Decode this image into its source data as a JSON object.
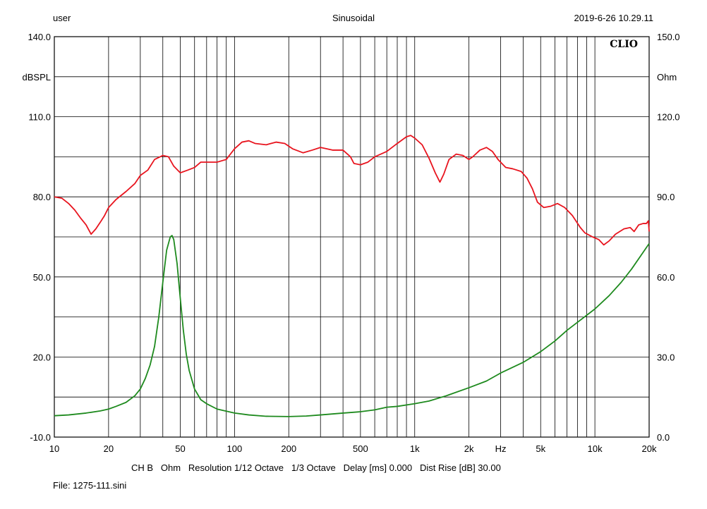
{
  "header": {
    "left": "user",
    "center": "Sinusoidal",
    "right": "2019-6-26 10.29.11"
  },
  "footer": {
    "settings": "CH B   Ohm   Resolution 1/12 Octave   1/3 Octave   Delay [ms] 0.000   Dist Rise [dB] 30.00",
    "file": "File: 1275-111.sini"
  },
  "chart_data": {
    "type": "line",
    "title": "",
    "logo": "CLIO",
    "xscale": "log",
    "xlim": [
      10,
      20000
    ],
    "x_ticks": [
      10,
      20,
      50,
      100,
      200,
      500,
      1000,
      2000,
      5000,
      10000,
      20000
    ],
    "x_tick_labels": [
      "10",
      "20",
      "50",
      "100",
      "200",
      "500",
      "1k",
      "2k",
      "5k",
      "10k",
      "20k"
    ],
    "x_unit_label": "Hz",
    "x_unit_position": 3000,
    "left_axis": {
      "label": "dBSPL",
      "lim": [
        -10,
        140
      ],
      "ticks": [
        -10,
        20,
        50,
        80,
        110,
        140
      ],
      "tick_labels": [
        "-10.0",
        "20.0",
        "50.0",
        "80.0",
        "110.0",
        "140.0"
      ]
    },
    "right_axis": {
      "label": "Ohm",
      "lim": [
        0,
        150
      ],
      "ticks": [
        0,
        30,
        60,
        90,
        120,
        150
      ],
      "tick_labels": [
        "0.0",
        "30.0",
        "60.0",
        "90.0",
        "120.0",
        "150.0"
      ]
    },
    "grid": true,
    "colors": {
      "spl": "#e8141e",
      "impedance": "#1e8a1e",
      "grid": "#000000"
    },
    "series": [
      {
        "axis": "left",
        "points": [
          [
            10,
            80
          ],
          [
            11,
            79.5
          ],
          [
            12,
            77.5
          ],
          [
            13,
            75
          ],
          [
            14,
            72
          ],
          [
            15,
            69.5
          ],
          [
            16,
            66
          ],
          [
            17,
            68
          ],
          [
            18,
            70.5
          ],
          [
            19,
            73
          ],
          [
            20,
            76
          ],
          [
            22,
            79
          ],
          [
            25,
            82
          ],
          [
            28,
            85
          ],
          [
            30,
            88
          ],
          [
            33,
            90
          ],
          [
            36,
            94
          ],
          [
            40,
            95.5
          ],
          [
            43,
            95
          ],
          [
            46,
            91.5
          ],
          [
            50,
            89
          ],
          [
            55,
            90
          ],
          [
            60,
            91
          ],
          [
            65,
            93
          ],
          [
            70,
            93
          ],
          [
            80,
            93
          ],
          [
            90,
            94
          ],
          [
            100,
            98
          ],
          [
            110,
            100.5
          ],
          [
            120,
            101
          ],
          [
            130,
            100
          ],
          [
            150,
            99.5
          ],
          [
            170,
            100.5
          ],
          [
            190,
            100
          ],
          [
            210,
            98
          ],
          [
            240,
            96.5
          ],
          [
            270,
            97.5
          ],
          [
            300,
            98.5
          ],
          [
            350,
            97.5
          ],
          [
            400,
            97.5
          ],
          [
            440,
            95
          ],
          [
            460,
            92.5
          ],
          [
            500,
            92
          ],
          [
            550,
            93
          ],
          [
            600,
            95
          ],
          [
            700,
            97
          ],
          [
            800,
            100
          ],
          [
            900,
            102.5
          ],
          [
            950,
            103
          ],
          [
            1000,
            102
          ],
          [
            1100,
            99.5
          ],
          [
            1200,
            94.5
          ],
          [
            1300,
            89
          ],
          [
            1380,
            85.5
          ],
          [
            1450,
            88.5
          ],
          [
            1550,
            94
          ],
          [
            1700,
            96
          ],
          [
            1850,
            95.5
          ],
          [
            2000,
            94
          ],
          [
            2100,
            95
          ],
          [
            2300,
            97.5
          ],
          [
            2500,
            98.5
          ],
          [
            2700,
            97
          ],
          [
            2900,
            94
          ],
          [
            3200,
            91
          ],
          [
            3500,
            90.5
          ],
          [
            3900,
            89.5
          ],
          [
            4200,
            87
          ],
          [
            4500,
            83
          ],
          [
            4800,
            78
          ],
          [
            5200,
            76
          ],
          [
            5700,
            76.5
          ],
          [
            6200,
            77.5
          ],
          [
            6800,
            76
          ],
          [
            7500,
            73
          ],
          [
            8300,
            68.5
          ],
          [
            8800,
            66.5
          ],
          [
            9700,
            65
          ],
          [
            10500,
            64
          ],
          [
            11200,
            62
          ],
          [
            12000,
            63.5
          ],
          [
            13000,
            66
          ],
          [
            14500,
            68
          ],
          [
            15700,
            68.5
          ],
          [
            16500,
            67
          ],
          [
            17500,
            69.5
          ],
          [
            18500,
            70
          ],
          [
            19300,
            70
          ],
          [
            19800,
            71
          ],
          [
            20000,
            67
          ]
        ]
      },
      {
        "axis": "right",
        "points": [
          [
            10,
            8
          ],
          [
            12,
            8.3
          ],
          [
            15,
            9
          ],
          [
            18,
            9.8
          ],
          [
            20,
            10.5
          ],
          [
            22,
            11.5
          ],
          [
            25,
            13
          ],
          [
            28,
            15.5
          ],
          [
            30,
            18
          ],
          [
            32,
            22
          ],
          [
            34,
            27
          ],
          [
            36,
            34
          ],
          [
            38,
            45
          ],
          [
            40,
            58
          ],
          [
            42,
            70
          ],
          [
            44,
            75
          ],
          [
            45,
            75.5
          ],
          [
            46,
            74
          ],
          [
            48,
            65
          ],
          [
            50,
            52
          ],
          [
            52,
            40
          ],
          [
            54,
            31
          ],
          [
            56,
            25
          ],
          [
            60,
            18
          ],
          [
            65,
            14
          ],
          [
            70,
            12.5
          ],
          [
            80,
            10.5
          ],
          [
            100,
            9
          ],
          [
            120,
            8.3
          ],
          [
            150,
            7.8
          ],
          [
            200,
            7.7
          ],
          [
            250,
            7.9
          ],
          [
            300,
            8.3
          ],
          [
            400,
            9
          ],
          [
            500,
            9.5
          ],
          [
            600,
            10.2
          ],
          [
            700,
            11.2
          ],
          [
            800,
            11.5
          ],
          [
            1000,
            12.5
          ],
          [
            1200,
            13.5
          ],
          [
            1500,
            15.5
          ],
          [
            2000,
            18.5
          ],
          [
            2500,
            21
          ],
          [
            3000,
            24
          ],
          [
            4000,
            28
          ],
          [
            5000,
            32
          ],
          [
            6000,
            36
          ],
          [
            7000,
            40
          ],
          [
            8000,
            43
          ],
          [
            10000,
            48
          ],
          [
            12000,
            53
          ],
          [
            14000,
            58
          ],
          [
            16000,
            63
          ],
          [
            18000,
            68
          ],
          [
            20000,
            72.5
          ]
        ]
      }
    ]
  }
}
